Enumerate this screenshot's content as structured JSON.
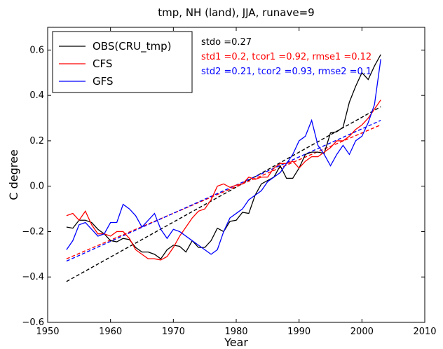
{
  "chart_data": {
    "type": "line",
    "title": "tmp, NH (land), JJA, runave=9",
    "xlabel": "Year",
    "ylabel": "C degree",
    "xlim": [
      1950,
      2010
    ],
    "ylim": [
      -0.6,
      0.7
    ],
    "xticks": [
      1950,
      1960,
      1970,
      1980,
      1990,
      2000,
      2010
    ],
    "yticks": [
      -0.6,
      -0.4,
      -0.2,
      0.0,
      0.2,
      0.4,
      0.6
    ],
    "ytick_labels": [
      "−0.6",
      "−0.4",
      "−0.2",
      "0.0",
      "0.2",
      "0.4",
      "0.6"
    ],
    "grid": false,
    "legend_position": "top-left",
    "x": [
      1953,
      1954,
      1955,
      1956,
      1957,
      1958,
      1959,
      1960,
      1961,
      1962,
      1963,
      1964,
      1965,
      1966,
      1967,
      1968,
      1969,
      1970,
      1971,
      1972,
      1973,
      1974,
      1975,
      1976,
      1977,
      1978,
      1979,
      1980,
      1981,
      1982,
      1983,
      1984,
      1985,
      1986,
      1987,
      1988,
      1989,
      1990,
      1991,
      1992,
      1993,
      1994,
      1995,
      1996,
      1997,
      1998,
      1999,
      2000,
      2001,
      2002,
      2003
    ],
    "series": [
      {
        "name": "OBS(CRU_tmp)",
        "color": "#000000",
        "values": [
          -0.18,
          -0.185,
          -0.15,
          -0.15,
          -0.16,
          -0.19,
          -0.21,
          -0.24,
          -0.245,
          -0.23,
          -0.235,
          -0.27,
          -0.29,
          -0.29,
          -0.3,
          -0.32,
          -0.28,
          -0.26,
          -0.265,
          -0.29,
          -0.24,
          -0.27,
          -0.27,
          -0.24,
          -0.185,
          -0.2,
          -0.155,
          -0.15,
          -0.115,
          -0.12,
          -0.04,
          0.01,
          0.025,
          0.04,
          0.09,
          0.035,
          0.035,
          0.08,
          0.14,
          0.15,
          0.15,
          0.145,
          0.235,
          0.24,
          0.26,
          0.37,
          0.44,
          0.5,
          0.47,
          0.53,
          0.58
        ]
      },
      {
        "name": "CFS",
        "color": "#ff0000",
        "values": [
          -0.13,
          -0.12,
          -0.15,
          -0.11,
          -0.17,
          -0.21,
          -0.21,
          -0.22,
          -0.2,
          -0.2,
          -0.23,
          -0.28,
          -0.3,
          -0.32,
          -0.32,
          -0.325,
          -0.31,
          -0.27,
          -0.22,
          -0.18,
          -0.14,
          -0.11,
          -0.1,
          -0.06,
          0.0,
          0.01,
          -0.005,
          0.005,
          0.01,
          0.04,
          0.03,
          0.04,
          0.04,
          0.08,
          0.1,
          0.1,
          0.11,
          0.08,
          0.11,
          0.13,
          0.13,
          0.15,
          0.17,
          0.2,
          0.2,
          0.22,
          0.25,
          0.27,
          0.3,
          0.34,
          0.38
        ]
      },
      {
        "name": "GFS",
        "color": "#0000ff",
        "values": [
          -0.28,
          -0.24,
          -0.17,
          -0.16,
          -0.19,
          -0.22,
          -0.21,
          -0.16,
          -0.16,
          -0.08,
          -0.1,
          -0.13,
          -0.18,
          -0.15,
          -0.12,
          -0.19,
          -0.23,
          -0.19,
          -0.2,
          -0.22,
          -0.24,
          -0.26,
          -0.28,
          -0.3,
          -0.28,
          -0.2,
          -0.14,
          -0.12,
          -0.1,
          -0.06,
          -0.04,
          -0.02,
          0.02,
          0.04,
          0.06,
          0.1,
          0.14,
          0.2,
          0.22,
          0.29,
          0.18,
          0.14,
          0.09,
          0.14,
          0.18,
          0.14,
          0.2,
          0.22,
          0.28,
          0.36,
          0.56
        ]
      }
    ],
    "trend_lines": [
      {
        "series": "OBS(CRU_tmp)",
        "color": "#000000",
        "x": [
          1953,
          2003
        ],
        "y": [
          -0.42,
          0.35
        ]
      },
      {
        "series": "CFS",
        "color": "#ff0000",
        "x": [
          1953,
          2003
        ],
        "y": [
          -0.32,
          0.27
        ]
      },
      {
        "series": "GFS",
        "color": "#0000ff",
        "x": [
          1953,
          2003
        ],
        "y": [
          -0.33,
          0.29
        ]
      }
    ],
    "annotations": [
      {
        "text": "stdo =0.27",
        "color": "#000000"
      },
      {
        "text": "std1 =0.2, tcor1 =0.92, rmse1 =0.12",
        "color": "#ff0000"
      },
      {
        "text": "std2 =0.21, tcor2 =0.93, rmse2 =0.1",
        "color": "#0000ff"
      }
    ]
  }
}
